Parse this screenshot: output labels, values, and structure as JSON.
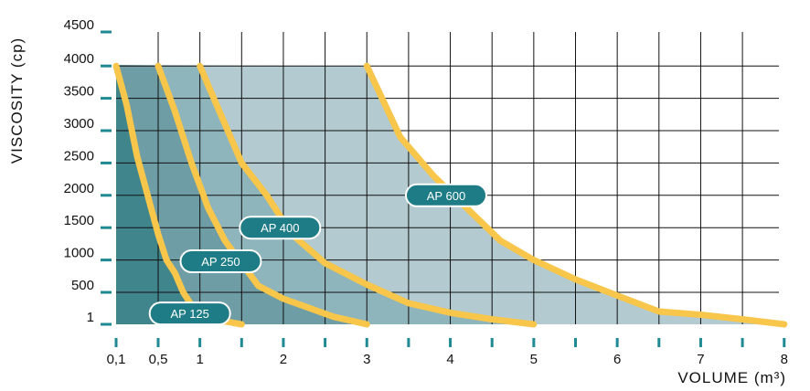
{
  "chart_data": {
    "type": "line",
    "xlabel": "VOLUME (m³)",
    "ylabel": "VISCOSITY (cp)",
    "x_tick_labels": [
      {
        "x": 0.1,
        "label": "0,1"
      },
      {
        "x": 0.5,
        "label": "0,5"
      },
      {
        "x": 1,
        "label": "1"
      },
      {
        "x": 2,
        "label": "2"
      },
      {
        "x": 3,
        "label": "3"
      },
      {
        "x": 4,
        "label": "4"
      },
      {
        "x": 5,
        "label": "5"
      },
      {
        "x": 6,
        "label": "6"
      },
      {
        "x": 7,
        "label": "7"
      },
      {
        "x": 8,
        "label": "8"
      }
    ],
    "y_tick_labels": [
      {
        "y": 1,
        "label": "1"
      },
      {
        "y": 500,
        "label": "500"
      },
      {
        "y": 1000,
        "label": "1000"
      },
      {
        "y": 1500,
        "label": "1500"
      },
      {
        "y": 2000,
        "label": "2000"
      },
      {
        "y": 2500,
        "label": "2500"
      },
      {
        "y": 3000,
        "label": "3000"
      },
      {
        "y": 3500,
        "label": "3500"
      },
      {
        "y": 4000,
        "label": "4000"
      },
      {
        "y": 4500,
        "label": "4500"
      }
    ],
    "xlim": [
      0.1,
      8
    ],
    "ylim": [
      1,
      4500
    ],
    "grid": true,
    "colors": {
      "curve": "#f7c64a",
      "label_bg": "#1e7c86",
      "label_border": "#ffffff",
      "tick_mark": "#1f8a93",
      "grid": "#111111",
      "region_1": "#40848c",
      "region_2": "#6e9da5",
      "region_3": "#8eb4bc",
      "region_4": "#b2cad0"
    },
    "series": [
      {
        "name": "AP 125",
        "label_anchor": {
          "x": 0.88,
          "y": 170
        },
        "points": [
          {
            "x": 0.1,
            "y": 4000
          },
          {
            "x": 0.2,
            "y": 3400
          },
          {
            "x": 0.3,
            "y": 2600
          },
          {
            "x": 0.4,
            "y": 2000
          },
          {
            "x": 0.5,
            "y": 1400
          },
          {
            "x": 0.6,
            "y": 1000
          },
          {
            "x": 0.7,
            "y": 800
          },
          {
            "x": 0.8,
            "y": 500
          },
          {
            "x": 0.9,
            "y": 300
          },
          {
            "x": 1.0,
            "y": 180
          },
          {
            "x": 1.1,
            "y": 100
          },
          {
            "x": 1.25,
            "y": 60
          },
          {
            "x": 1.5,
            "y": 1
          }
        ]
      },
      {
        "name": "AP 250",
        "label_anchor": {
          "x": 1.25,
          "y": 980
        },
        "points": [
          {
            "x": 0.5,
            "y": 4000
          },
          {
            "x": 0.7,
            "y": 3300
          },
          {
            "x": 0.9,
            "y": 2500
          },
          {
            "x": 1.1,
            "y": 1800
          },
          {
            "x": 1.3,
            "y": 1300
          },
          {
            "x": 1.5,
            "y": 950
          },
          {
            "x": 1.7,
            "y": 600
          },
          {
            "x": 2.0,
            "y": 400
          },
          {
            "x": 2.3,
            "y": 260
          },
          {
            "x": 2.6,
            "y": 120
          },
          {
            "x": 3.0,
            "y": 1
          }
        ]
      },
      {
        "name": "AP 400",
        "label_anchor": {
          "x": 1.96,
          "y": 1500
        },
        "points": [
          {
            "x": 1.0,
            "y": 4000
          },
          {
            "x": 1.2,
            "y": 3400
          },
          {
            "x": 1.5,
            "y": 2500
          },
          {
            "x": 1.8,
            "y": 2000
          },
          {
            "x": 2.1,
            "y": 1400
          },
          {
            "x": 2.5,
            "y": 950
          },
          {
            "x": 3.0,
            "y": 620
          },
          {
            "x": 3.5,
            "y": 330
          },
          {
            "x": 4.0,
            "y": 180
          },
          {
            "x": 4.5,
            "y": 80
          },
          {
            "x": 5.0,
            "y": 1
          }
        ]
      },
      {
        "name": "AP 600",
        "label_anchor": {
          "x": 3.95,
          "y": 2000
        },
        "points": [
          {
            "x": 3.0,
            "y": 4000
          },
          {
            "x": 3.4,
            "y": 2900
          },
          {
            "x": 3.8,
            "y": 2300
          },
          {
            "x": 4.2,
            "y": 1800
          },
          {
            "x": 4.6,
            "y": 1300
          },
          {
            "x": 5.0,
            "y": 1000
          },
          {
            "x": 5.5,
            "y": 700
          },
          {
            "x": 6.0,
            "y": 450
          },
          {
            "x": 6.5,
            "y": 200
          },
          {
            "x": 7.0,
            "y": 150
          },
          {
            "x": 7.5,
            "y": 80
          },
          {
            "x": 8.0,
            "y": 1
          }
        ]
      }
    ]
  }
}
